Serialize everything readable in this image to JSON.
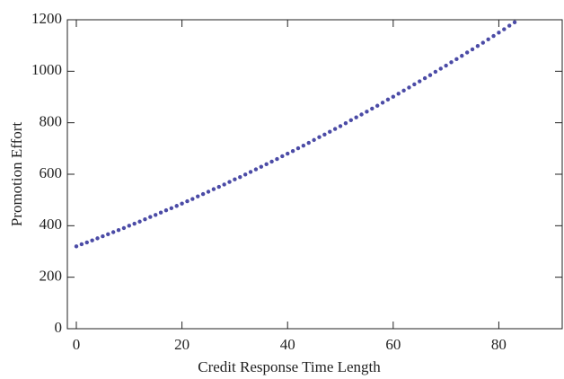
{
  "chart_data": {
    "type": "scatter",
    "x_label": "Credit Response Time Length",
    "y_label": "Promotion Effort",
    "x": [
      0,
      1,
      2,
      3,
      4,
      5,
      6,
      7,
      8,
      9,
      10,
      11,
      12,
      13,
      14,
      15,
      16,
      17,
      18,
      19,
      20,
      21,
      22,
      23,
      24,
      25,
      26,
      27,
      28,
      29,
      30,
      31,
      32,
      33,
      34,
      35,
      36,
      37,
      38,
      39,
      40,
      41,
      42,
      43,
      44,
      45,
      46,
      47,
      48,
      49,
      50,
      51,
      52,
      53,
      54,
      55,
      56,
      57,
      58,
      59,
      60,
      61,
      62,
      63,
      64,
      65,
      66,
      67,
      68,
      69,
      70,
      71,
      72,
      73,
      74,
      75,
      76,
      77,
      78,
      79,
      80,
      81,
      82,
      83
    ],
    "values": [
      320,
      328,
      335,
      343,
      351,
      359,
      367,
      375,
      383,
      391,
      400,
      408,
      416,
      425,
      434,
      442,
      451,
      460,
      468,
      477,
      486,
      495,
      504,
      514,
      523,
      532,
      542,
      551,
      560,
      570,
      580,
      589,
      599,
      609,
      619,
      629,
      639,
      649,
      659,
      670,
      680,
      690,
      701,
      711,
      722,
      733,
      744,
      754,
      765,
      776,
      787,
      798,
      810,
      821,
      832,
      843,
      855,
      866,
      878,
      890,
      901,
      913,
      925,
      937,
      949,
      961,
      973,
      985,
      998,
      1010,
      1022,
      1035,
      1047,
      1060,
      1073,
      1085,
      1098,
      1111,
      1124,
      1137,
      1150,
      1163,
      1177,
      1190
    ],
    "color": "#4b4ba6",
    "xlim": [
      -1.7,
      92
    ],
    "xticks": [
      0,
      20,
      40,
      60,
      80
    ],
    "ylim": [
      0,
      1200
    ],
    "yticks": [
      0,
      200,
      400,
      600,
      800,
      1000,
      1200
    ]
  }
}
